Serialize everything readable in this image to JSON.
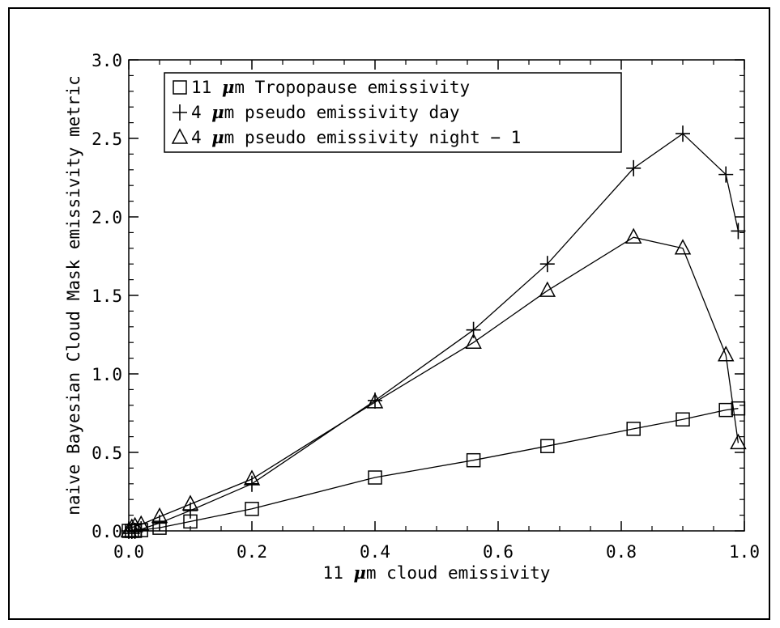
{
  "chart_data": {
    "type": "line",
    "xlabel": {
      "pre": "11 ",
      "mu": "μ",
      "post": "m cloud emissivity"
    },
    "ylabel": "naive Bayesian Cloud Mask emissivity metric",
    "xlim": [
      0.0,
      1.0
    ],
    "ylim": [
      0.0,
      3.0
    ],
    "xticks": [
      "0.0",
      "0.2",
      "0.4",
      "0.6",
      "0.8",
      "1.0"
    ],
    "yticks": [
      "0.0",
      "0.5",
      "1.0",
      "1.5",
      "2.0",
      "2.5",
      "3.0"
    ],
    "x_tick_values": [
      0.0,
      0.2,
      0.4,
      0.6,
      0.8,
      1.0
    ],
    "y_tick_values": [
      0.0,
      0.5,
      1.0,
      1.5,
      2.0,
      2.5,
      3.0
    ],
    "legend_position": "top-left",
    "grid": false,
    "series": [
      {
        "name": "11 μm Tropopause emissivity",
        "legend": {
          "sym": "□",
          "pre": "11 ",
          "mu": "μ",
          "post": "m Tropopause emissivity"
        },
        "marker": "square",
        "x": [
          0.0,
          0.005,
          0.01,
          0.02,
          0.05,
          0.1,
          0.2,
          0.4,
          0.56,
          0.68,
          0.82,
          0.9,
          0.97,
          0.99
        ],
        "y": [
          0.0,
          0.0,
          0.0,
          0.005,
          0.02,
          0.06,
          0.14,
          0.34,
          0.45,
          0.54,
          0.65,
          0.71,
          0.77,
          0.78
        ]
      },
      {
        "name": "4 μm pseudo emissivity day",
        "legend": {
          "sym": "+",
          "pre": "4 ",
          "mu": "μ",
          "post": "m pseudo emissivity day"
        },
        "marker": "plus",
        "x": [
          0.0,
          0.005,
          0.01,
          0.02,
          0.05,
          0.1,
          0.2,
          0.4,
          0.56,
          0.68,
          0.82,
          0.9,
          0.97,
          0.99
        ],
        "y": [
          0.0,
          0.0,
          0.0,
          0.01,
          0.05,
          0.13,
          0.3,
          0.83,
          1.28,
          1.7,
          2.31,
          2.53,
          2.27,
          1.91
        ]
      },
      {
        "name": "4 μm pseudo emissivity night - 1",
        "legend": {
          "sym": "△",
          "pre": "4 ",
          "mu": "μ",
          "post": "m pseudo emissivity night − 1"
        },
        "marker": "triangle",
        "x": [
          0.0,
          0.005,
          0.01,
          0.02,
          0.05,
          0.1,
          0.2,
          0.4,
          0.56,
          0.68,
          0.82,
          0.9,
          0.97,
          0.99
        ],
        "y": [
          0.0,
          0.02,
          0.03,
          0.04,
          0.09,
          0.17,
          0.33,
          0.82,
          1.2,
          1.53,
          1.87,
          1.8,
          1.12,
          0.56
        ]
      }
    ]
  }
}
